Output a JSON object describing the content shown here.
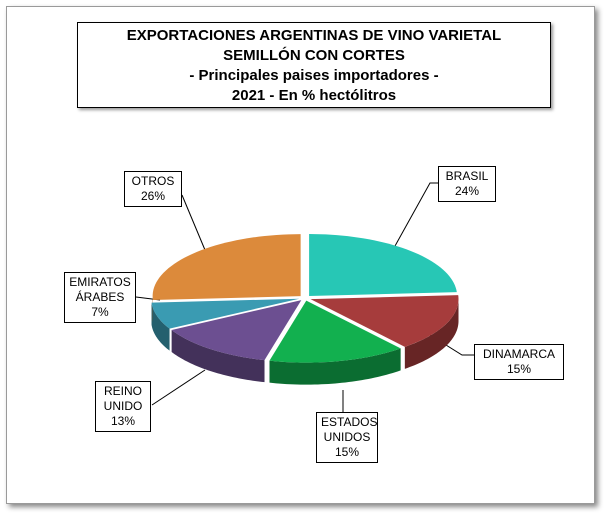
{
  "chart_data": {
    "type": "pie",
    "title": "EXPORTACIONES ARGENTINAS DE VINO VARIETAL SEMILLÓN CON CORTES",
    "subtitle": [
      "- Principales paises importadores -",
      "2021 - En % hectólitros"
    ],
    "categories": [
      "BRASIL",
      "DINAMARCA",
      "ESTADOS UNIDOS",
      "REINO UNIDO",
      "EMIRATOS ÁRABES",
      "OTROS"
    ],
    "values": [
      24,
      15,
      15,
      13,
      7,
      26
    ],
    "value_labels": [
      "24%",
      "15%",
      "15%",
      "13%",
      "7%",
      "26%"
    ],
    "colors": [
      "#27c7b5",
      "#a63c3c",
      "#12b04f",
      "#6c4f91",
      "#3a9bb2",
      "#dc8a3b"
    ]
  }
}
